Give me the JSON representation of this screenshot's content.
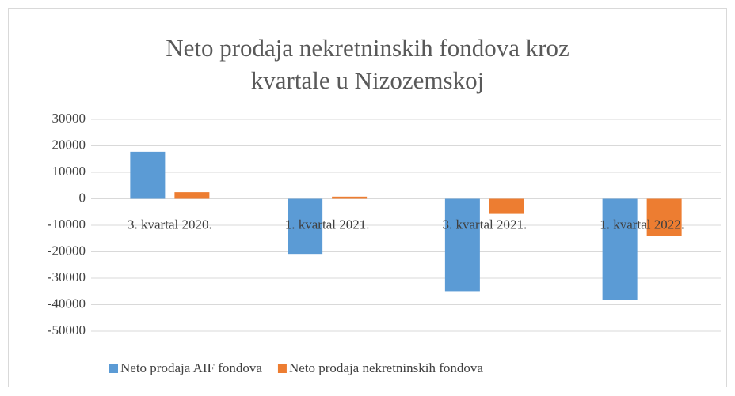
{
  "chart_data": {
    "type": "bar",
    "title": "Neto prodaja nekretninskih fondova kroz kvartale u Nizozemskoj",
    "categories": [
      "3. kvartal 2020.",
      "1. kvartal 2021.",
      "3. kvartal 2021.",
      "1. kvartal 2022."
    ],
    "series": [
      {
        "name": "Neto prodaja AIF fondova",
        "color": "#5b9bd5",
        "values": [
          17800,
          -20800,
          -34900,
          -38200
        ]
      },
      {
        "name": "Neto prodaja nekretninskih fondova",
        "color": "#ed7d31",
        "values": [
          2500,
          800,
          -5700,
          -14000
        ]
      }
    ],
    "ylim": [
      -50000,
      30000
    ],
    "yticks": [
      -50000,
      -40000,
      -30000,
      -20000,
      -10000,
      0,
      10000,
      20000,
      30000
    ],
    "grid": true,
    "legend": "bottom"
  }
}
